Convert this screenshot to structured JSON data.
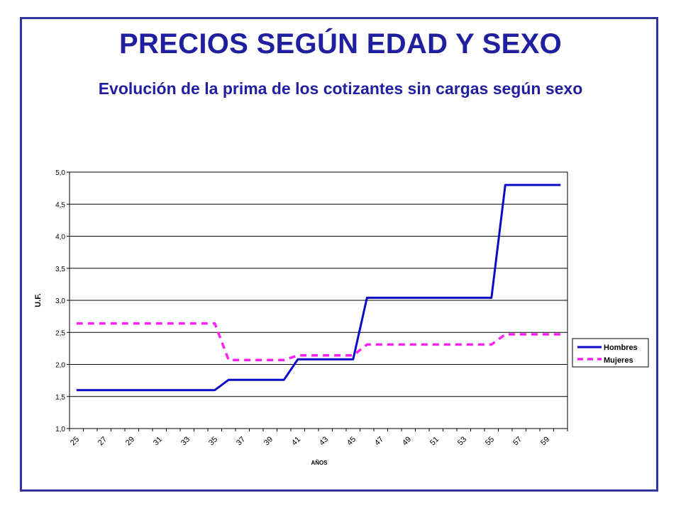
{
  "page": {
    "title": "PRECIOS SEGÚN EDAD Y SEXO",
    "subtitle": "Evolución de la prima de los cotizantes sin cargas según sexo"
  },
  "colors": {
    "frame": "#33339a",
    "title": "#1f1fa0",
    "hombres": "#0a0ac8",
    "mujeres": "#ff22ee"
  },
  "chart_data": {
    "type": "line",
    "title": "",
    "xlabel": "AÑOS",
    "ylabel": "U.F.",
    "ylim": [
      1.0,
      5.0
    ],
    "y_ticks": [
      "1,0",
      "1,5",
      "2,0",
      "2,5",
      "3,0",
      "3,5",
      "4,0",
      "4,5",
      "5,0"
    ],
    "x_ticks": [
      "25",
      "27",
      "29",
      "31",
      "33",
      "35",
      "37",
      "39",
      "41",
      "43",
      "45",
      "47",
      "49",
      "51",
      "53",
      "55",
      "57",
      "59"
    ],
    "x": [
      25,
      26,
      27,
      28,
      29,
      30,
      31,
      32,
      33,
      34,
      35,
      36,
      37,
      38,
      39,
      40,
      41,
      42,
      43,
      44,
      45,
      46,
      47,
      48,
      49,
      50,
      51,
      52,
      53,
      54,
      55,
      56,
      57,
      58,
      59,
      60
    ],
    "grid": true,
    "legend_position": "right",
    "series": [
      {
        "name": "Hombres",
        "style": "solid",
        "values": [
          1.6,
          1.6,
          1.6,
          1.6,
          1.6,
          1.6,
          1.6,
          1.6,
          1.6,
          1.6,
          1.6,
          1.76,
          1.76,
          1.76,
          1.76,
          1.76,
          2.08,
          2.08,
          2.08,
          2.08,
          2.08,
          3.04,
          3.04,
          3.04,
          3.04,
          3.04,
          3.04,
          3.04,
          3.04,
          3.04,
          3.04,
          4.8,
          4.8,
          4.8,
          4.8,
          4.8
        ]
      },
      {
        "name": "Mujeres",
        "style": "dashed",
        "values": [
          2.64,
          2.64,
          2.64,
          2.64,
          2.64,
          2.64,
          2.64,
          2.64,
          2.64,
          2.64,
          2.64,
          2.07,
          2.07,
          2.07,
          2.07,
          2.07,
          2.14,
          2.14,
          2.14,
          2.14,
          2.14,
          2.31,
          2.31,
          2.31,
          2.31,
          2.31,
          2.31,
          2.31,
          2.31,
          2.31,
          2.31,
          2.47,
          2.47,
          2.47,
          2.47,
          2.47
        ]
      }
    ]
  }
}
